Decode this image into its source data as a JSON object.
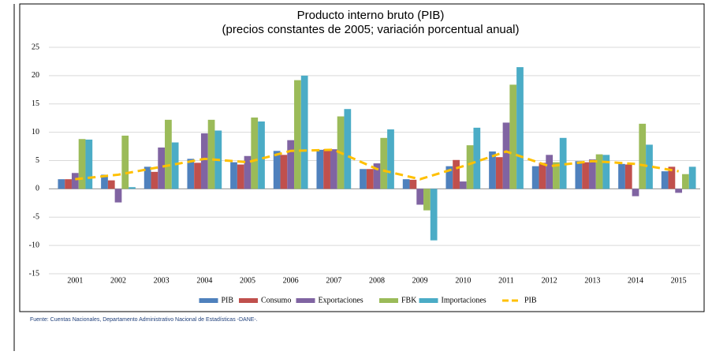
{
  "chart_data": {
    "type": "bar",
    "title": "Producto interno bruto (PIB)",
    "subtitle": "(precios constantes de 2005; variación porcentual anual)",
    "source": "Fuente: Cuentas Nacionales, Departamento Administrativo Nacional de Estadísticas -DANE-.",
    "categories": [
      "2001",
      "2002",
      "2003",
      "2004",
      "2005",
      "2006",
      "2007",
      "2008",
      "2009",
      "2010",
      "2011",
      "2012",
      "2013",
      "2014",
      "2015"
    ],
    "series": [
      {
        "name": "PIB",
        "color": "#4f81bd",
        "values": [
          1.7,
          2.5,
          3.9,
          5.3,
          4.7,
          6.7,
          6.9,
          3.5,
          1.7,
          4.0,
          6.6,
          4.0,
          4.9,
          4.4,
          3.1
        ]
      },
      {
        "name": "Consumo",
        "color": "#c0504d",
        "values": [
          1.7,
          1.5,
          3.0,
          4.6,
          4.3,
          6.0,
          7.0,
          3.5,
          1.6,
          5.1,
          5.6,
          4.6,
          4.7,
          4.3,
          3.9
        ]
      },
      {
        "name": "Exportaciones",
        "color": "#8064a2",
        "values": [
          2.8,
          -2.4,
          7.3,
          9.8,
          5.8,
          8.6,
          7.0,
          4.5,
          -2.8,
          1.3,
          11.7,
          6.0,
          5.2,
          -1.3,
          -0.7
        ]
      },
      {
        "name": "FBK",
        "color": "#9bbb59",
        "values": [
          8.8,
          9.4,
          12.2,
          12.2,
          12.6,
          19.2,
          12.8,
          9.0,
          -3.8,
          7.7,
          18.4,
          4.7,
          6.1,
          11.5,
          2.6
        ]
      },
      {
        "name": "Importaciones",
        "color": "#4bacc6",
        "values": [
          8.7,
          0.3,
          8.2,
          10.3,
          11.9,
          20.0,
          14.1,
          10.5,
          -9.1,
          10.8,
          21.5,
          9.0,
          6.0,
          7.8,
          3.9
        ]
      },
      {
        "name": "PIB",
        "color": "#ffc000",
        "type": "line",
        "dashed": true,
        "values": [
          1.7,
          2.5,
          3.9,
          5.3,
          4.7,
          6.7,
          6.9,
          3.5,
          1.7,
          4.0,
          6.6,
          4.0,
          4.9,
          4.4,
          3.1
        ]
      }
    ],
    "ylim": [
      -15,
      25
    ],
    "yticks": [
      -15,
      -10,
      -5,
      0,
      5,
      10,
      15,
      20,
      25
    ],
    "grid": true,
    "legend": "bottom"
  }
}
